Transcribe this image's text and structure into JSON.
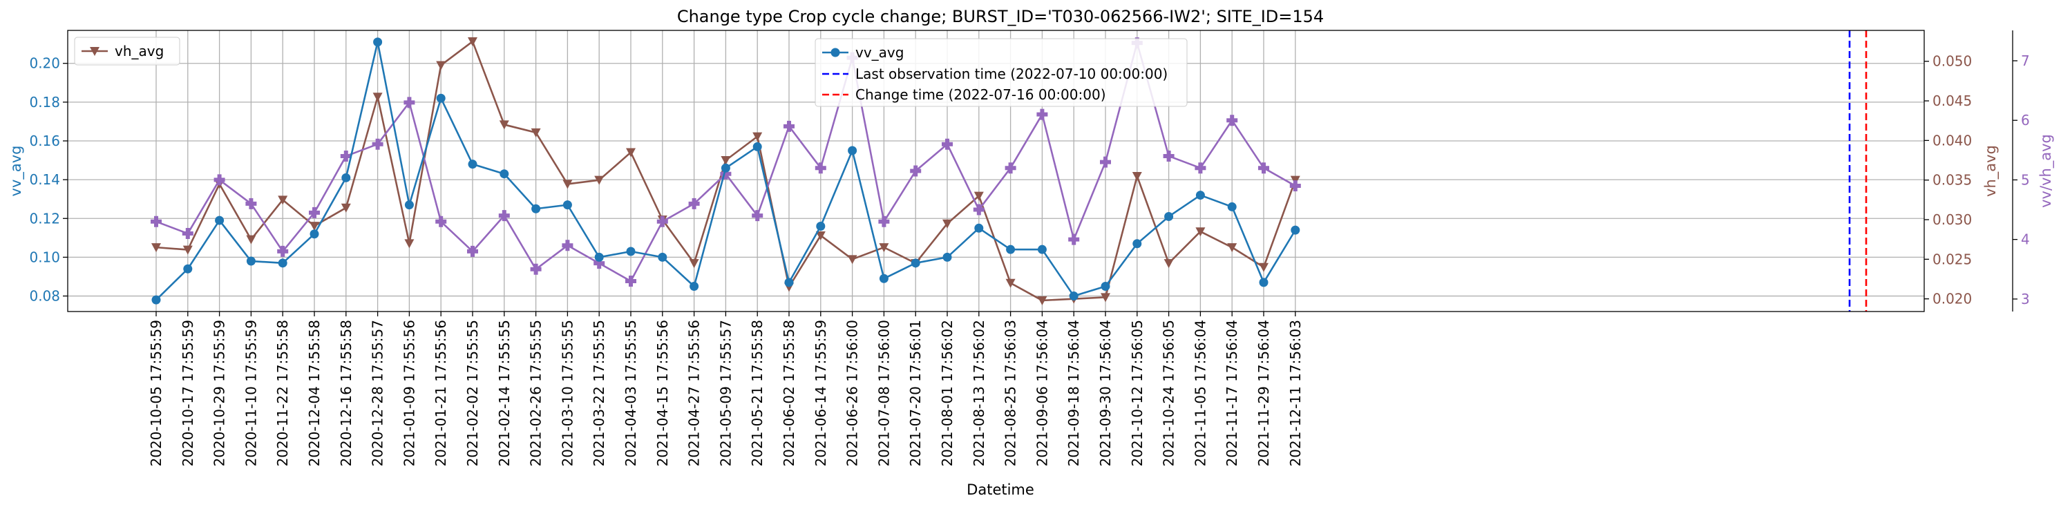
{
  "chart_data": {
    "type": "line",
    "title": "Change type Crop cycle change; BURST_ID='T030-062566-IW2'; SITE_ID=154",
    "xlabel": "Datetime",
    "categories": [
      "2020-10-05 17:55:59",
      "2020-10-17 17:55:59",
      "2020-10-29 17:55:59",
      "2020-11-10 17:55:59",
      "2020-11-22 17:55:58",
      "2020-12-04 17:55:58",
      "2020-12-16 17:55:58",
      "2020-12-28 17:55:57",
      "2021-01-09 17:55:56",
      "2021-01-21 17:55:56",
      "2021-02-02 17:55:55",
      "2021-02-14 17:55:55",
      "2021-02-26 17:55:55",
      "2021-03-10 17:55:55",
      "2021-03-22 17:55:55",
      "2021-04-03 17:55:55",
      "2021-04-15 17:55:56",
      "2021-04-27 17:55:56",
      "2021-05-09 17:55:57",
      "2021-05-21 17:55:58",
      "2021-06-02 17:55:58",
      "2021-06-14 17:55:59",
      "2021-06-26 17:56:00",
      "2021-07-08 17:56:00",
      "2021-07-20 17:56:01",
      "2021-08-01 17:56:02",
      "2021-08-13 17:56:02",
      "2021-08-25 17:56:03",
      "2021-09-06 17:56:04",
      "2021-09-18 17:56:04",
      "2021-09-30 17:56:04",
      "2021-10-12 17:56:05",
      "2021-10-24 17:56:05",
      "2021-11-05 17:56:04",
      "2021-11-17 17:56:04",
      "2021-11-29 17:56:04",
      "2021-12-11 17:56:03"
    ],
    "series": [
      {
        "name": "vv_avg",
        "axis": "left",
        "color": "#1f77b4",
        "marker": "circle",
        "values": [
          0.078,
          0.094,
          0.119,
          0.098,
          0.097,
          0.112,
          0.141,
          0.211,
          0.127,
          0.182,
          0.148,
          0.143,
          0.125,
          0.127,
          0.1,
          0.103,
          0.1,
          0.085,
          0.146,
          0.157,
          0.087,
          0.116,
          0.155,
          0.089,
          0.097,
          0.1,
          0.115,
          0.104,
          0.104,
          0.08,
          0.085,
          0.107,
          0.121,
          0.132,
          0.126,
          0.087,
          0.114
        ]
      },
      {
        "name": "vh_avg",
        "axis": "right1",
        "color": "#8c564b",
        "marker": "triangle-down",
        "values": [
          0.0265,
          0.0262,
          0.0345,
          0.0275,
          0.0325,
          0.0292,
          0.0315,
          0.0455,
          0.027,
          0.0495,
          0.0525,
          0.042,
          0.041,
          0.0345,
          0.035,
          0.0385,
          0.03,
          0.0245,
          0.0375,
          0.0405,
          0.0215,
          0.028,
          0.025,
          0.0265,
          0.0245,
          0.0295,
          0.033,
          0.022,
          0.0198,
          0.02,
          0.0202,
          0.0355,
          0.0245,
          0.0285,
          0.0265,
          0.024,
          0.035
        ]
      },
      {
        "name": "vv/vh_avg",
        "axis": "right2",
        "color": "#9467bd",
        "marker": "plus",
        "values": [
          4.3,
          4.1,
          5.0,
          4.6,
          3.8,
          4.45,
          5.4,
          5.6,
          6.3,
          4.3,
          3.8,
          4.4,
          3.5,
          3.9,
          3.6,
          3.3,
          4.3,
          4.6,
          5.1,
          4.4,
          5.9,
          5.2,
          7.05,
          4.3,
          5.15,
          5.6,
          4.5,
          5.2,
          6.1,
          4.0,
          5.3,
          7.3,
          5.4,
          5.2,
          6.0,
          5.2,
          4.9
        ]
      }
    ],
    "vlines": [
      {
        "label": "Last observation time (2022-07-10 00:00:00)",
        "color": "#0000ff",
        "position": "2022-07-10 00:00:00"
      },
      {
        "label": "Change time (2022-07-16 00:00:00)",
        "color": "#ff0000",
        "position": "2022-07-16 00:00:00"
      }
    ],
    "axes": {
      "left": {
        "label": "vv_avg",
        "color": "#1f77b4",
        "ylim": [
          0.072,
          0.217
        ],
        "ticks": [
          "0.08",
          "0.10",
          "0.12",
          "0.14",
          "0.16",
          "0.18",
          "0.20"
        ]
      },
      "right1": {
        "label": "vh_avg",
        "color": "#8c564b",
        "ylim": [
          0.0184,
          0.0539
        ],
        "ticks": [
          "0.020",
          "0.025",
          "0.030",
          "0.035",
          "0.040",
          "0.045",
          "0.050"
        ]
      },
      "right2": {
        "label": "vv/vh_avg",
        "color": "#9467bd",
        "ylim": [
          2.79,
          7.51
        ],
        "ticks": [
          "3",
          "4",
          "5",
          "6",
          "7"
        ]
      }
    },
    "grid": true,
    "legends": [
      {
        "placement": "top-left",
        "entries": [
          "vh_avg"
        ]
      },
      {
        "placement": "top-center",
        "entries": [
          "vv_avg",
          "Last observation time (2022-07-10 00:00:00)",
          "Change time (2022-07-16 00:00:00)"
        ]
      }
    ]
  }
}
